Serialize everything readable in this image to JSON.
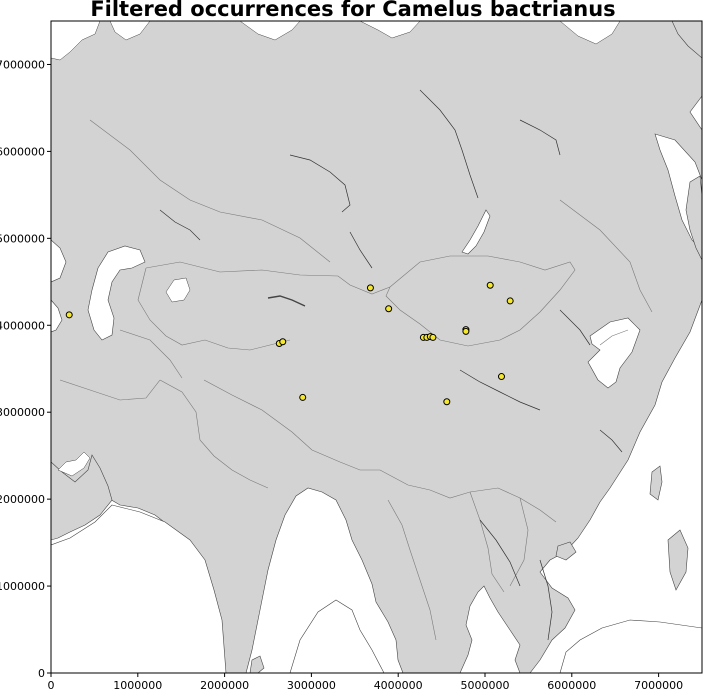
{
  "chart_data": {
    "type": "scatter",
    "title": "Filtered occurrences for Camelus bactrianus",
    "xlabel": "",
    "ylabel": "",
    "xlim": [
      0,
      7500000
    ],
    "ylim": [
      0,
      7500000
    ],
    "x_ticks": [
      0,
      1000000,
      2000000,
      3000000,
      4000000,
      5000000,
      6000000,
      7000000
    ],
    "x_tick_labels": [
      "0",
      "1000000",
      "2000000",
      "3000000",
      "4000000",
      "5000000",
      "6000000",
      "7000000"
    ],
    "y_ticks": [
      0,
      1000000,
      2000000,
      3000000,
      4000000,
      5000000,
      6000000,
      7000000
    ],
    "y_tick_labels": [
      "0",
      "1000000",
      "2000000",
      "3000000",
      "4000000",
      "5000000",
      "6000000",
      "7000000"
    ],
    "grid": false,
    "background": "basemap",
    "series": [
      {
        "marker_color": "#f5e62e",
        "marker_edge": "#000000",
        "points": [
          {
            "x": 210000,
            "y": 4120000
          },
          {
            "x": 2630000,
            "y": 3790000
          },
          {
            "x": 2670000,
            "y": 3810000
          },
          {
            "x": 2900000,
            "y": 3170000
          },
          {
            "x": 3680000,
            "y": 4430000
          },
          {
            "x": 3890000,
            "y": 4190000
          },
          {
            "x": 4290000,
            "y": 3860000
          },
          {
            "x": 4330000,
            "y": 3860000
          },
          {
            "x": 4370000,
            "y": 3870000
          },
          {
            "x": 4400000,
            "y": 3860000
          },
          {
            "x": 4560000,
            "y": 3120000
          },
          {
            "x": 4780000,
            "y": 3950000
          },
          {
            "x": 4780000,
            "y": 3930000
          },
          {
            "x": 5060000,
            "y": 4460000
          },
          {
            "x": 5190000,
            "y": 3410000
          },
          {
            "x": 5290000,
            "y": 4280000
          }
        ]
      }
    ]
  },
  "colors": {
    "land": "#d3d3d3",
    "water": "#ffffff",
    "coast": "#444444",
    "border": "#7a7a7a",
    "river": "#333333"
  }
}
